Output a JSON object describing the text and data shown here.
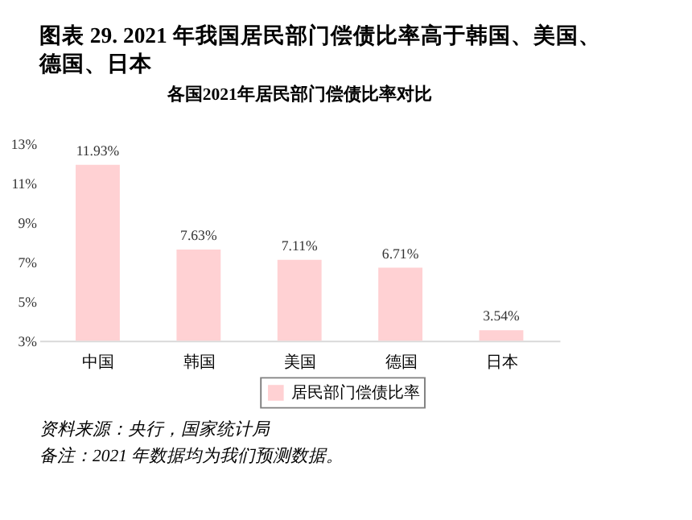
{
  "chart_data": {
    "type": "bar",
    "title": "图表 29. 2021 年我国居民部门偿债比率高于韩国、美国、德国、日本",
    "subtitle": "各国2021年居民部门偿债比率对比",
    "categories": [
      "中国",
      "韩国",
      "美国",
      "德国",
      "日本"
    ],
    "series": [
      {
        "name": "居民部门偿债比率",
        "color": "#ffd1d3",
        "values": [
          11.93,
          7.63,
          7.11,
          6.71,
          3.54
        ],
        "value_labels": [
          "11.93%",
          "7.63%",
          "7.11%",
          "6.71%",
          "3.54%"
        ]
      }
    ],
    "ylim": [
      3,
      13
    ],
    "yticks": [
      {
        "value": 3,
        "label": "3%"
      },
      {
        "value": 5,
        "label": "5%"
      },
      {
        "value": 7,
        "label": "7%"
      },
      {
        "value": 9,
        "label": "9%"
      },
      {
        "value": 11,
        "label": "11%"
      },
      {
        "value": 13,
        "label": "13%"
      }
    ],
    "grid": false,
    "legend": "bottom",
    "annotations": [
      "资料来源：央行，国家统计局",
      "备注：2021 年数据均为我们预测数据。"
    ]
  }
}
